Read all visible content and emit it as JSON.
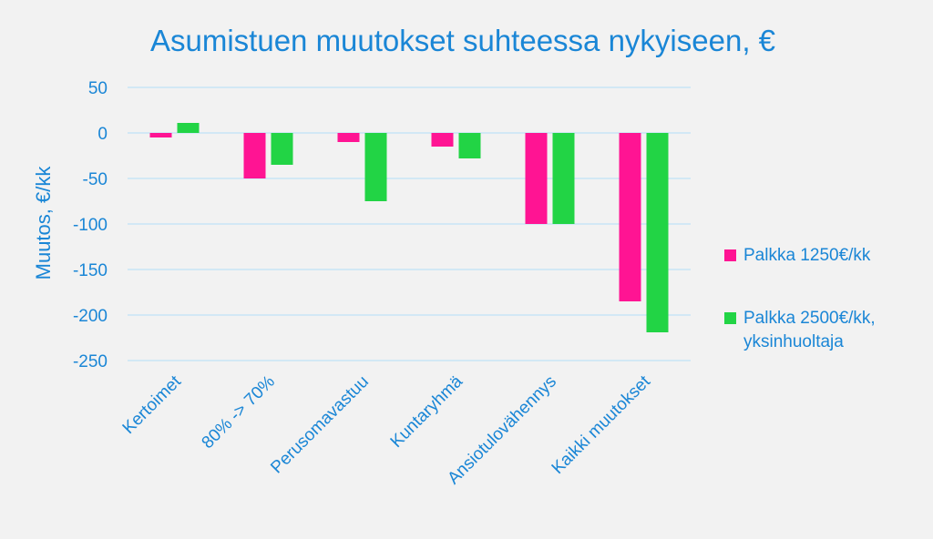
{
  "chart_data": {
    "type": "bar",
    "title": "Asumistuen muutokset suhteessa nykyiseen, €",
    "ylabel": "Muutos, €/kk",
    "xlabel": "",
    "ylim": [
      -250,
      50
    ],
    "yticks": [
      50,
      0,
      -50,
      -100,
      -150,
      -200,
      -250
    ],
    "grid": true,
    "legend_position": "right",
    "categories": [
      "Kertoimet",
      "80% -> 70%",
      "Perusomavastuu",
      "Kuntaryhmä",
      "Ansiotulovähennys",
      "Kaikki muutokset"
    ],
    "series": [
      {
        "name": "Palkka 1250€/kk",
        "color": "#ff1493",
        "values": [
          -5,
          -50,
          -10,
          -15,
          -100,
          -185
        ]
      },
      {
        "name": "Palkka 2500€/kk, yksinhuoltaja",
        "color": "#22d445",
        "values": [
          11,
          -35,
          -75,
          -28,
          -100,
          -219
        ]
      }
    ]
  }
}
